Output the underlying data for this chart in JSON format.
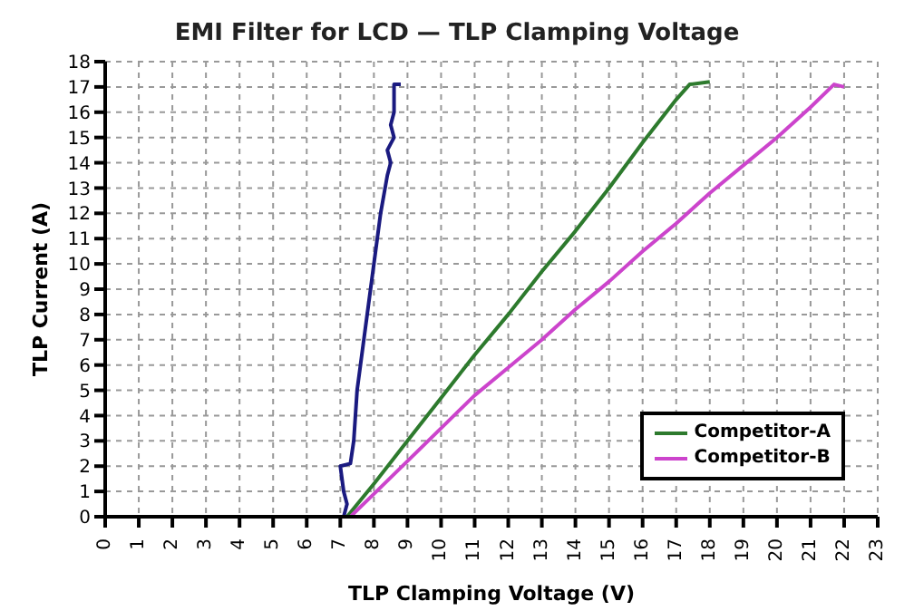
{
  "chart_data": {
    "type": "line",
    "title": "EMI Filter for LCD — TLP Clamping Voltage",
    "xlabel": "TLP Clamping Voltage (V)",
    "ylabel": "TLP Current (A)",
    "xlim": [
      0,
      23
    ],
    "xticks": [
      0,
      1,
      2,
      3,
      4,
      5,
      6,
      7,
      8,
      9,
      10,
      11,
      12,
      13,
      14,
      15,
      16,
      17,
      18,
      19,
      20,
      21,
      22,
      23
    ],
    "ylim": [
      0,
      18
    ],
    "yticks": [
      0,
      1,
      2,
      3,
      4,
      5,
      6,
      7,
      8,
      9,
      10,
      11,
      12,
      13,
      14,
      15,
      16,
      17,
      18
    ],
    "grid": true,
    "legend": "bottom right",
    "line_style": "solid",
    "marker": "none",
    "series": [
      {
        "name": "Competitor-A",
        "color": "#2d7a2d",
        "x": [
          7.2,
          8,
          9,
          10,
          11,
          12,
          13,
          14,
          15,
          16,
          17,
          17.4,
          18
        ],
        "values": [
          0,
          1.3,
          3,
          4.7,
          6.4,
          8,
          9.7,
          11.3,
          13,
          14.8,
          16.5,
          17.1,
          17.2
        ]
      },
      {
        "name": "Competitor-B",
        "color": "#cc44cc",
        "x": [
          7.3,
          8,
          9,
          10,
          11,
          12,
          13,
          14,
          15,
          16,
          17,
          18,
          19,
          20,
          21,
          21.7,
          22
        ],
        "values": [
          0,
          0.9,
          2.2,
          3.5,
          4.8,
          5.9,
          7,
          8.2,
          9.3,
          10.5,
          11.6,
          12.8,
          13.9,
          15,
          16.2,
          17.1,
          17
        ]
      },
      {
        "color": "#1a1a80",
        "x": [
          7.1,
          7.2,
          7.1,
          7,
          7.3,
          7.4,
          7.5,
          7.6,
          7.8,
          8,
          8.2,
          8.4,
          8.5,
          8.4,
          8.6,
          8.5,
          8.6,
          8.6,
          8.8
        ],
        "values": [
          0,
          0.5,
          1,
          2,
          2.1,
          3,
          5,
          6,
          8,
          10,
          12,
          13.5,
          14,
          14.5,
          15,
          15.5,
          16,
          17.1,
          17.1
        ]
      }
    ]
  }
}
